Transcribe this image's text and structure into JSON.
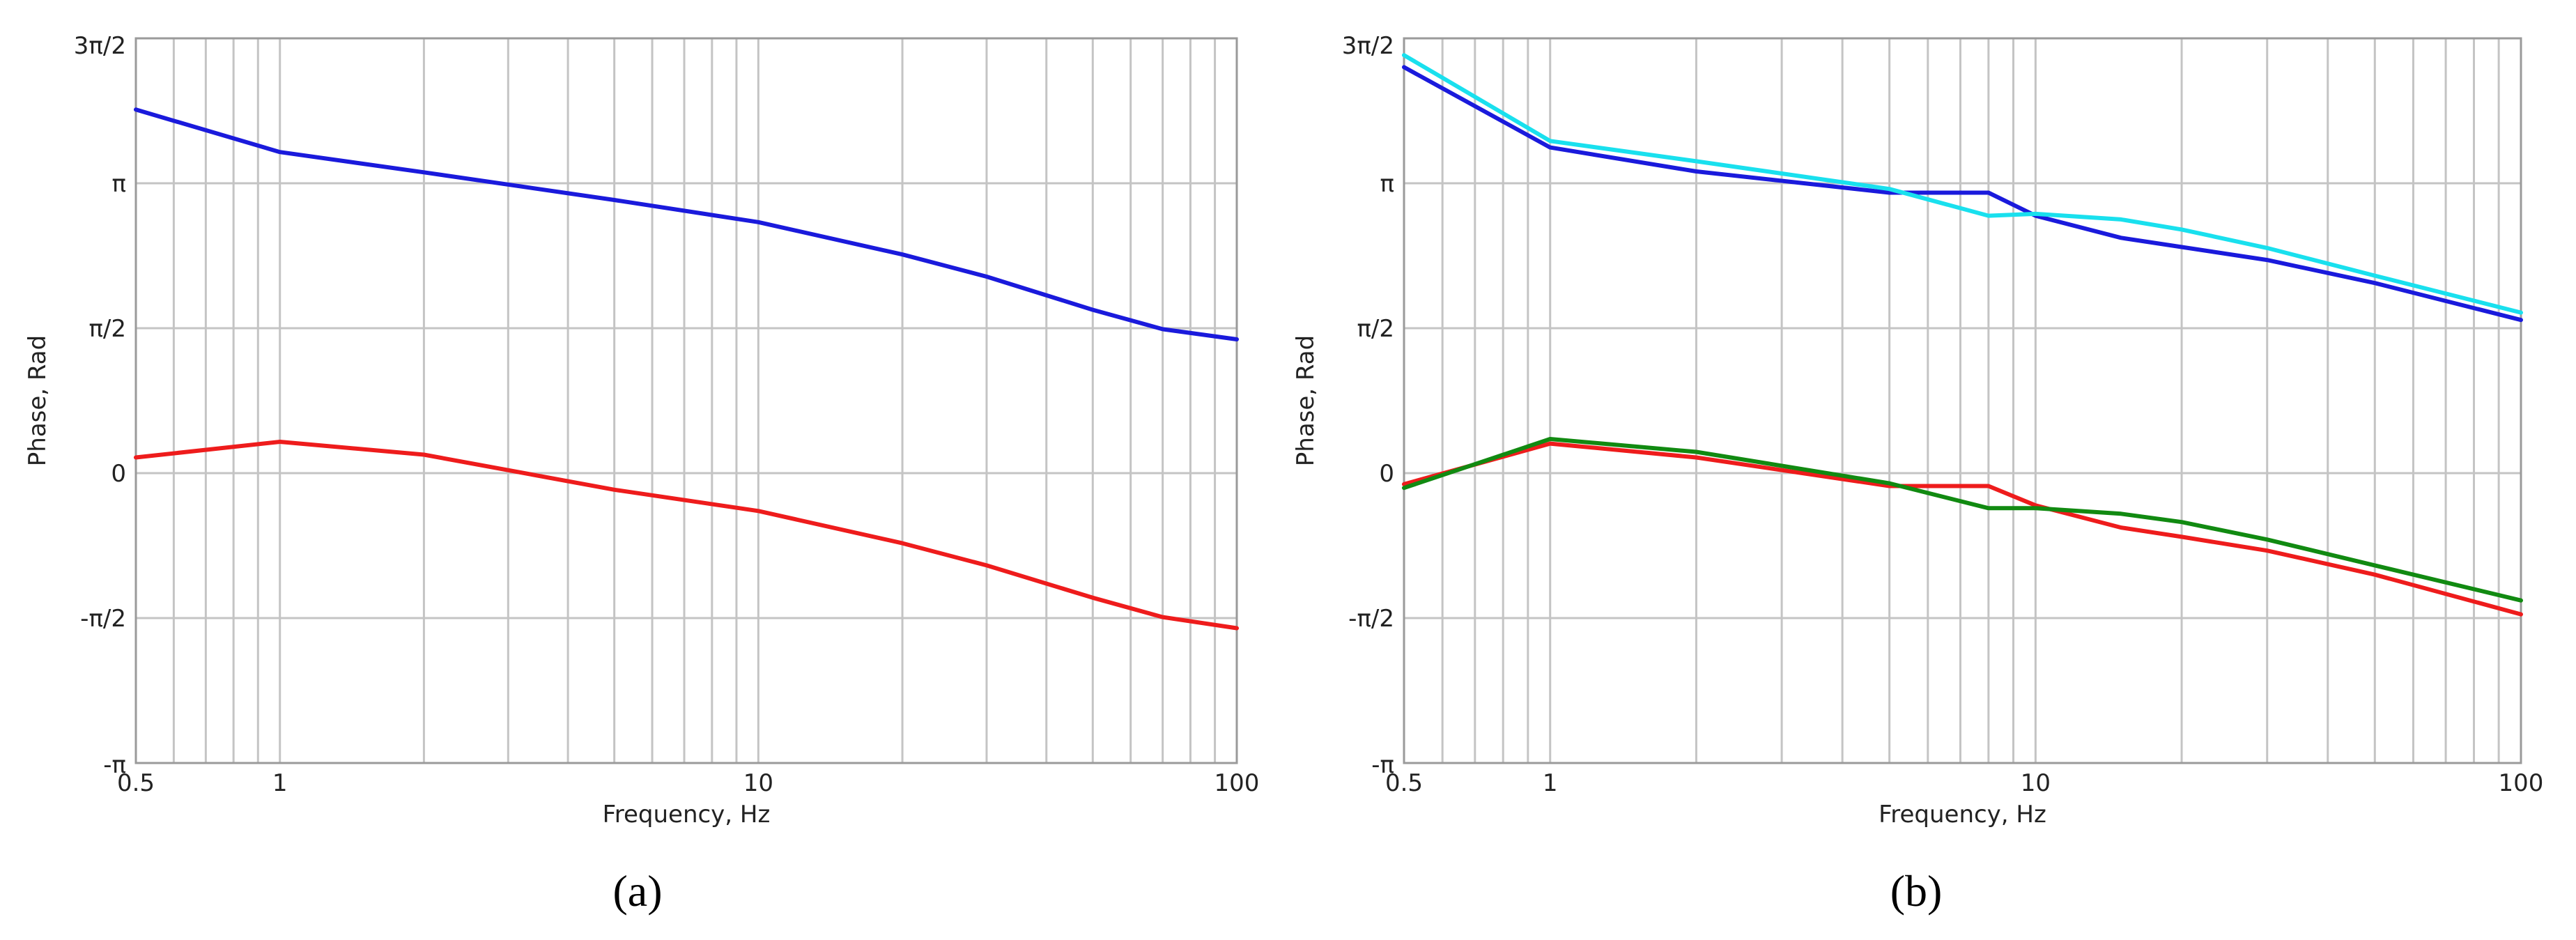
{
  "colors": {
    "blue": "#1a1adc",
    "red": "#ee1c1c",
    "cyan": "#19e0ee",
    "green": "#118a11",
    "grid": "#c4c4c4",
    "frame": "#9a9a9a"
  },
  "chart_data": [
    {
      "type": "line",
      "panel_label": "(a)",
      "xlabel": "Frequency, Hz",
      "ylabel": "Phase, Rad",
      "xscale": "log",
      "xlim": [
        0.5,
        100
      ],
      "ylim": [
        -3.1416,
        4.7124
      ],
      "x_ticks": [
        0.5,
        1,
        10,
        100
      ],
      "x_tick_labels": [
        "0.5",
        "1",
        "10",
        "100"
      ],
      "y_ticks": [
        -3.1416,
        -1.5708,
        0,
        1.5708,
        3.1416,
        4.7124
      ],
      "y_tick_labels": [
        "-π",
        "-π/2",
        "0",
        "π/2",
        "π",
        "3π/2"
      ],
      "grid": true,
      "series": [
        {
          "color": "blue",
          "x": [
            0.5,
            1,
            2,
            5,
            10,
            20,
            30,
            50,
            70,
            100
          ],
          "y": [
            3.94,
            3.48,
            3.26,
            2.96,
            2.72,
            2.37,
            2.13,
            1.77,
            1.56,
            1.45
          ]
        },
        {
          "color": "red",
          "x": [
            0.5,
            1,
            2,
            5,
            10,
            20,
            30,
            50,
            70,
            100
          ],
          "y": [
            0.17,
            0.34,
            0.2,
            -0.18,
            -0.41,
            -0.76,
            -1.0,
            -1.35,
            -1.56,
            -1.68
          ]
        }
      ]
    },
    {
      "type": "line",
      "panel_label": "(b)",
      "xlabel": "Frequency, Hz",
      "ylabel": "Phase, Rad",
      "xscale": "log",
      "xlim": [
        0.5,
        100
      ],
      "ylim": [
        -3.1416,
        4.7124
      ],
      "x_ticks": [
        0.5,
        1,
        10,
        100
      ],
      "x_tick_labels": [
        "0.5",
        "1",
        "10",
        "100"
      ],
      "y_ticks": [
        -3.1416,
        -1.5708,
        0,
        1.5708,
        3.1416,
        4.7124
      ],
      "y_tick_labels": [
        "-π",
        "-π/2",
        "0",
        "π/2",
        "π",
        "3π/2"
      ],
      "grid": true,
      "series": [
        {
          "color": "blue",
          "x": [
            0.5,
            1,
            2,
            5,
            8,
            10,
            15,
            30,
            50,
            100
          ],
          "y": [
            4.4,
            3.53,
            3.27,
            3.04,
            3.04,
            2.79,
            2.55,
            2.31,
            2.06,
            1.66
          ]
        },
        {
          "color": "cyan",
          "x": [
            0.5,
            1,
            2,
            5,
            8,
            10,
            15,
            20,
            30,
            50,
            100
          ],
          "y": [
            4.53,
            3.6,
            3.38,
            3.08,
            2.79,
            2.81,
            2.75,
            2.64,
            2.44,
            2.14,
            1.74
          ]
        },
        {
          "color": "red",
          "x": [
            0.5,
            1,
            2,
            5,
            8,
            10,
            15,
            20,
            30,
            50,
            100
          ],
          "y": [
            -0.12,
            0.32,
            0.17,
            -0.14,
            -0.14,
            -0.35,
            -0.59,
            -0.69,
            -0.84,
            -1.1,
            -1.53
          ]
        },
        {
          "color": "green",
          "x": [
            0.5,
            1,
            2,
            5,
            8,
            10,
            15,
            20,
            30,
            50,
            100
          ],
          "y": [
            -0.16,
            0.37,
            0.23,
            -0.11,
            -0.38,
            -0.38,
            -0.44,
            -0.53,
            -0.72,
            -1.0,
            -1.38
          ]
        }
      ]
    }
  ]
}
